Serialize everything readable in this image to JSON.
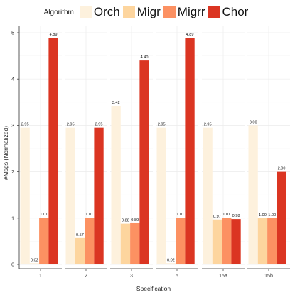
{
  "legend": {
    "title": "Algorithm",
    "placement": "top"
  },
  "colors": {
    "Orch": "#fdf1dd",
    "Migr": "#fdd59e",
    "Migrr": "#fc9162",
    "Chor": "#db3522"
  },
  "chart_data": {
    "type": "bar",
    "categories": [
      "1",
      "2",
      "3",
      "5",
      "15a",
      "15b"
    ],
    "series": [
      {
        "name": "Orch",
        "values": [
          2.95,
          2.95,
          3.42,
          2.95,
          2.95,
          3.0
        ]
      },
      {
        "name": "Migr",
        "values": [
          0.02,
          0.57,
          0.88,
          0.02,
          0.97,
          1.0
        ]
      },
      {
        "name": "Migrr",
        "values": [
          1.01,
          1.01,
          0.89,
          1.01,
          1.01,
          1.0
        ]
      },
      {
        "name": "Chor",
        "values": [
          4.89,
          2.95,
          4.4,
          4.89,
          0.98,
          2.0
        ]
      }
    ],
    "data_labels": [
      [
        "2.95",
        "0.02",
        "1.01",
        "4.89"
      ],
      [
        "2.95",
        "0.57",
        "1.01",
        "2.95"
      ],
      [
        "3.42",
        "0.88",
        "0.89",
        "4.40"
      ],
      [
        "2.95",
        "0.02",
        "1.01",
        "4.89"
      ],
      [
        "2.95",
        "0.97",
        "1.01",
        "0.98"
      ],
      [
        "3.00",
        "1.00",
        "1.00",
        "2.00"
      ]
    ],
    "title": "",
    "xlabel": "Specification",
    "ylabel": "#Msgs (Normalized)",
    "ylim": [
      0,
      5.2
    ],
    "yticks": [
      "0",
      "1",
      "2",
      "3",
      "4",
      "5"
    ],
    "grid": true,
    "faceted": true
  }
}
